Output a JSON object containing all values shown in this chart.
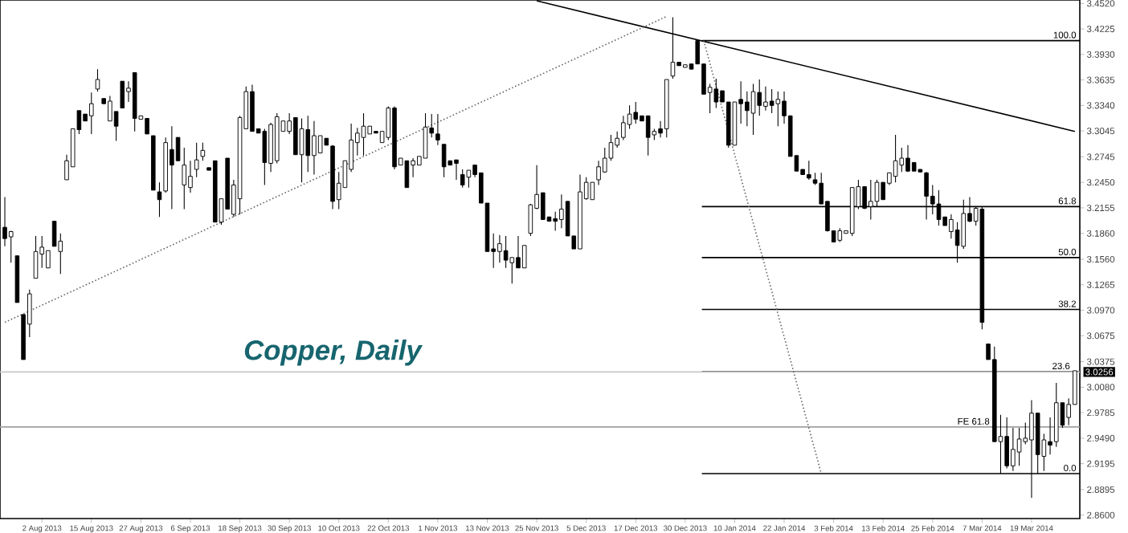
{
  "chart_data": {
    "type": "candlestick",
    "title": "Copper, Daily",
    "color": "#000000",
    "categories": [
      null,
      null,
      null,
      null,
      null,
      null,
      "2 Aug 2013",
      null,
      null,
      null,
      null,
      null,
      null,
      null,
      "15 Aug 2013",
      null,
      null,
      null,
      null,
      null,
      null,
      null,
      "27 Aug 2013",
      null,
      null,
      null,
      null,
      null,
      null,
      null,
      "6 Sep 2013",
      null,
      null,
      null,
      null,
      null,
      null,
      null,
      "18 Sep 2013",
      null,
      null,
      null,
      null,
      null,
      null,
      null,
      "30 Sep 2013",
      null,
      null,
      null,
      null,
      null,
      null,
      null,
      "10 Oct 2013",
      null,
      null,
      null,
      null,
      null,
      null,
      null,
      "22 Oct 2013",
      null,
      null,
      null,
      null,
      null,
      null,
      null,
      "1 Nov 2013",
      null,
      null,
      null,
      null,
      null,
      null,
      null,
      "13 Nov 2013",
      null,
      null,
      null,
      null,
      null,
      null,
      null,
      "25 Nov 2013",
      null,
      null,
      null,
      null,
      null,
      null,
      null,
      "5 Dec 2013",
      null,
      null,
      null,
      null,
      null,
      null,
      null,
      "17 Dec 2013",
      null,
      null,
      null,
      null,
      null,
      null,
      null,
      "30 Dec 2013",
      null,
      null,
      null,
      null,
      null,
      null,
      null,
      "10 Jan 2014",
      null,
      null,
      null,
      null,
      null,
      null,
      null,
      "22 Jan 2014",
      null,
      null,
      null,
      null,
      null,
      null,
      null,
      "3 Feb 2014",
      null,
      null,
      null,
      null,
      null,
      null,
      null,
      "13 Feb 2014",
      null,
      null,
      null,
      null,
      null,
      null,
      null,
      "25 Feb 2014",
      null,
      null,
      null,
      null,
      null,
      null,
      null,
      "7 Mar 2014",
      null,
      null,
      null,
      null,
      null,
      null,
      null,
      "19 Mar 2014",
      null,
      null,
      null,
      null,
      null,
      null,
      null
    ],
    "ohlc": [
      [
        3.193,
        3.228,
        3.171,
        3.18
      ],
      [
        3.182,
        3.189,
        3.152,
        3.188
      ],
      [
        3.16,
        3.16,
        3.106,
        3.106
      ],
      [
        3.092,
        3.092,
        3.04,
        3.04
      ],
      [
        3.081,
        3.121,
        3.066,
        3.116
      ],
      [
        3.134,
        3.183,
        3.134,
        3.165
      ],
      [
        3.162,
        3.183,
        3.146,
        3.17
      ],
      [
        3.146,
        3.166,
        3.146,
        3.166
      ],
      [
        3.2,
        3.2,
        3.171,
        3.171
      ],
      [
        3.165,
        3.186,
        3.139,
        3.177
      ],
      [
        3.248,
        3.277,
        3.248,
        3.27
      ],
      [
        3.263,
        3.307,
        3.263,
        3.307
      ],
      [
        3.328,
        3.328,
        3.301,
        3.306
      ],
      [
        3.324,
        3.324,
        3.316,
        3.316
      ],
      [
        3.322,
        3.349,
        3.301,
        3.336
      ],
      [
        3.353,
        3.376,
        3.35,
        3.364
      ],
      [
        3.342,
        3.342,
        3.336,
        3.336
      ],
      [
        3.316,
        3.345,
        3.316,
        3.339
      ],
      [
        3.327,
        3.327,
        3.293,
        3.31
      ],
      [
        3.362,
        3.362,
        3.331,
        3.331
      ],
      [
        3.35,
        3.362,
        3.338,
        3.354
      ],
      [
        3.372,
        3.372,
        3.304,
        3.319
      ],
      [
        3.318,
        3.322,
        3.318,
        3.322
      ],
      [
        3.319,
        3.319,
        3.301,
        3.301
      ],
      [
        3.299,
        3.299,
        3.236,
        3.236
      ],
      [
        3.234,
        3.245,
        3.205,
        3.225
      ],
      [
        3.235,
        3.297,
        3.233,
        3.291
      ],
      [
        3.283,
        3.31,
        3.214,
        3.265
      ],
      [
        3.297,
        3.297,
        3.27,
        3.27
      ],
      [
        3.242,
        3.285,
        3.214,
        3.265
      ],
      [
        3.239,
        3.27,
        3.233,
        3.252
      ],
      [
        3.26,
        3.291,
        3.251,
        3.271
      ],
      [
        3.275,
        3.291,
        3.27,
        3.282
      ],
      [
        3.262,
        3.262,
        3.259,
        3.259
      ],
      [
        3.27,
        3.27,
        3.199,
        3.199
      ],
      [
        3.199,
        3.226,
        3.196,
        3.226
      ],
      [
        3.273,
        3.273,
        3.214,
        3.214
      ],
      [
        3.208,
        3.248,
        3.205,
        3.242
      ],
      [
        3.226,
        3.322,
        3.208,
        3.32
      ],
      [
        3.307,
        3.356,
        3.307,
        3.35
      ],
      [
        3.35,
        3.358,
        3.304,
        3.304
      ],
      [
        3.307,
        3.307,
        3.302,
        3.302
      ],
      [
        3.304,
        3.307,
        3.242,
        3.268
      ],
      [
        3.267,
        3.314,
        3.257,
        3.312
      ],
      [
        3.27,
        3.325,
        3.267,
        3.321
      ],
      [
        3.304,
        3.316,
        3.304,
        3.316
      ],
      [
        3.304,
        3.325,
        3.301,
        3.316
      ],
      [
        3.32,
        3.32,
        3.277,
        3.277
      ],
      [
        3.277,
        3.319,
        3.245,
        3.307
      ],
      [
        3.306,
        3.322,
        3.257,
        3.276
      ],
      [
        3.276,
        3.316,
        3.254,
        3.299
      ],
      [
        3.279,
        3.299,
        3.279,
        3.299
      ],
      [
        3.296,
        3.296,
        3.288,
        3.288
      ],
      [
        3.287,
        3.288,
        3.214,
        3.223
      ],
      [
        3.225,
        3.257,
        3.214,
        3.244
      ],
      [
        3.239,
        3.27,
        3.239,
        3.27
      ],
      [
        3.26,
        3.313,
        3.257,
        3.294
      ],
      [
        3.291,
        3.308,
        3.276,
        3.302
      ],
      [
        3.297,
        3.325,
        3.276,
        3.31
      ],
      [
        3.301,
        3.31,
        3.301,
        3.31
      ],
      [
        3.304,
        3.304,
        3.302,
        3.302
      ],
      [
        3.291,
        3.304,
        3.291,
        3.304
      ],
      [
        3.297,
        3.333,
        3.294,
        3.331
      ],
      [
        3.331,
        3.333,
        3.26,
        3.263
      ],
      [
        3.265,
        3.273,
        3.265,
        3.273
      ],
      [
        3.27,
        3.27,
        3.239,
        3.239
      ],
      [
        3.265,
        3.273,
        3.251,
        3.27
      ],
      [
        3.265,
        3.275,
        3.265,
        3.275
      ],
      [
        3.273,
        3.325,
        3.273,
        3.309
      ],
      [
        3.308,
        3.324,
        3.297,
        3.302
      ],
      [
        3.301,
        3.324,
        3.288,
        3.294
      ],
      [
        3.289,
        3.289,
        3.251,
        3.263
      ],
      [
        3.27,
        3.27,
        3.265,
        3.265
      ],
      [
        3.271,
        3.271,
        3.248,
        3.267
      ],
      [
        3.254,
        3.26,
        3.239,
        3.242
      ],
      [
        3.251,
        3.259,
        3.239,
        3.259
      ],
      [
        3.265,
        3.265,
        3.251,
        3.254
      ],
      [
        3.256,
        3.256,
        3.221,
        3.221
      ],
      [
        3.221,
        3.221,
        3.165,
        3.165
      ],
      [
        3.168,
        3.186,
        3.146,
        3.165
      ],
      [
        3.165,
        3.184,
        3.152,
        3.174
      ],
      [
        3.166,
        3.183,
        3.146,
        3.155
      ],
      [
        3.152,
        3.158,
        3.128,
        3.158
      ],
      [
        3.158,
        3.183,
        3.146,
        3.146
      ],
      [
        3.146,
        3.172,
        3.146,
        3.172
      ],
      [
        3.186,
        3.22,
        3.183,
        3.219
      ],
      [
        3.215,
        3.265,
        3.214,
        3.231
      ],
      [
        3.233,
        3.233,
        3.202,
        3.202
      ],
      [
        3.205,
        3.205,
        3.2,
        3.2
      ],
      [
        3.203,
        3.211,
        3.189,
        3.2
      ],
      [
        3.202,
        3.231,
        3.192,
        3.214
      ],
      [
        3.223,
        3.223,
        3.183,
        3.183
      ],
      [
        3.183,
        3.183,
        3.168,
        3.168
      ],
      [
        3.168,
        3.254,
        3.168,
        3.234
      ],
      [
        3.226,
        3.251,
        3.225,
        3.245
      ],
      [
        3.225,
        3.245,
        3.225,
        3.245
      ],
      [
        3.248,
        3.27,
        3.242,
        3.263
      ],
      [
        3.257,
        3.285,
        3.256,
        3.273
      ],
      [
        3.273,
        3.3,
        3.27,
        3.291
      ],
      [
        3.288,
        3.304,
        3.285,
        3.296
      ],
      [
        3.297,
        3.322,
        3.294,
        3.314
      ],
      [
        3.312,
        3.334,
        3.307,
        3.324
      ],
      [
        3.326,
        3.338,
        3.313,
        3.318
      ],
      [
        3.322,
        3.322,
        3.316,
        3.316
      ],
      [
        3.322,
        3.322,
        3.276,
        3.297
      ],
      [
        3.3,
        3.307,
        3.294,
        3.304
      ],
      [
        3.307,
        3.316,
        3.297,
        3.302
      ],
      [
        3.307,
        3.364,
        3.297,
        3.364
      ],
      [
        3.368,
        3.436,
        3.365,
        3.384
      ],
      [
        3.384,
        3.384,
        3.38,
        3.38
      ],
      [
        3.378,
        3.381,
        3.378,
        3.381
      ],
      [
        3.382,
        3.382,
        3.376,
        3.376
      ],
      [
        3.409,
        3.409,
        3.382,
        3.382
      ],
      [
        3.382,
        3.382,
        3.347,
        3.347
      ],
      [
        3.349,
        3.359,
        3.325,
        3.355
      ],
      [
        3.353,
        3.365,
        3.331,
        3.338
      ],
      [
        3.351,
        3.351,
        3.338,
        3.338
      ],
      [
        3.338,
        3.338,
        3.285,
        3.288
      ],
      [
        3.288,
        3.338,
        3.288,
        3.338
      ],
      [
        3.341,
        3.362,
        3.313,
        3.336
      ],
      [
        3.338,
        3.35,
        3.31,
        3.328
      ],
      [
        3.325,
        3.359,
        3.3,
        3.35
      ],
      [
        3.349,
        3.364,
        3.322,
        3.334
      ],
      [
        3.333,
        3.356,
        3.328,
        3.338
      ],
      [
        3.339,
        3.353,
        3.325,
        3.334
      ],
      [
        3.336,
        3.35,
        3.31,
        3.341
      ],
      [
        3.339,
        3.35,
        3.313,
        3.322
      ],
      [
        3.322,
        3.322,
        3.275,
        3.275
      ],
      [
        3.276,
        3.276,
        3.258,
        3.258
      ],
      [
        3.26,
        3.26,
        3.254,
        3.254
      ],
      [
        3.254,
        3.27,
        3.248,
        3.25
      ],
      [
        3.248,
        3.256,
        3.242,
        3.244
      ],
      [
        3.244,
        3.256,
        3.22,
        3.22
      ],
      [
        3.223,
        3.223,
        3.188,
        3.189
      ],
      [
        3.189,
        3.189,
        3.176,
        3.176
      ],
      [
        3.178,
        3.192,
        3.176,
        3.189
      ],
      [
        3.186,
        3.189,
        3.186,
        3.189
      ],
      [
        3.186,
        3.239,
        3.183,
        3.239
      ],
      [
        3.217,
        3.248,
        3.214,
        3.24
      ],
      [
        3.24,
        3.24,
        3.214,
        3.215
      ],
      [
        3.217,
        3.248,
        3.202,
        3.223
      ],
      [
        3.223,
        3.248,
        3.217,
        3.245
      ],
      [
        3.245,
        3.245,
        3.225,
        3.225
      ],
      [
        3.244,
        3.256,
        3.242,
        3.256
      ],
      [
        3.252,
        3.3,
        3.245,
        3.27
      ],
      [
        3.265,
        3.285,
        3.257,
        3.273
      ],
      [
        3.273,
        3.288,
        3.257,
        3.258
      ],
      [
        3.268,
        3.268,
        3.258,
        3.258
      ],
      [
        3.26,
        3.26,
        3.257,
        3.257
      ],
      [
        3.256,
        3.257,
        3.202,
        3.229
      ],
      [
        3.229,
        3.242,
        3.208,
        3.22
      ],
      [
        3.22,
        3.236,
        3.195,
        3.202
      ],
      [
        3.205,
        3.205,
        3.195,
        3.195
      ],
      [
        3.188,
        3.208,
        3.18,
        3.202
      ],
      [
        3.19,
        3.199,
        3.152,
        3.172
      ],
      [
        3.171,
        3.225,
        3.168,
        3.209
      ],
      [
        3.209,
        3.228,
        3.199,
        3.2
      ],
      [
        3.2,
        3.217,
        3.195,
        3.215
      ],
      [
        3.214,
        3.217,
        3.075,
        3.083
      ],
      [
        3.058,
        3.058,
        3.04,
        3.04
      ],
      [
        3.04,
        3.055,
        2.945,
        2.945
      ],
      [
        2.945,
        2.976,
        2.908,
        2.951
      ],
      [
        2.951,
        2.973,
        2.914,
        2.917
      ],
      [
        2.917,
        2.961,
        2.911,
        2.936
      ],
      [
        2.933,
        2.961,
        2.917,
        2.948
      ],
      [
        2.945,
        2.967,
        2.942,
        2.949
      ],
      [
        2.947,
        2.993,
        2.88,
        2.978
      ],
      [
        2.978,
        2.978,
        2.908,
        2.93
      ],
      [
        2.928,
        2.954,
        2.911,
        2.947
      ],
      [
        2.945,
        2.973,
        2.93,
        2.941
      ],
      [
        2.945,
        3.013,
        2.939,
        2.99
      ],
      [
        2.99,
        2.99,
        2.961,
        2.964
      ],
      [
        2.973,
        2.995,
        2.964,
        2.988
      ],
      [
        2.988,
        3.027,
        2.988,
        3.027
      ]
    ],
    "series": [
      {
        "type": "line",
        "values": [
          null,
          null,
          null,
          null,
          null,
          null,
          null,
          null,
          null,
          null,
          null,
          null,
          null,
          null,
          null,
          null,
          null,
          null,
          null,
          null,
          null,
          null,
          null,
          null,
          null,
          null,
          null,
          null,
          null,
          null,
          null,
          null,
          null,
          null,
          null,
          null,
          null,
          null,
          null,
          null,
          null,
          null,
          null,
          null,
          null,
          null,
          null,
          null,
          null,
          null,
          null,
          null,
          null,
          null,
          null,
          null,
          null,
          null,
          null,
          null,
          null,
          null,
          null,
          null,
          null,
          null,
          null,
          null,
          null,
          null,
          null,
          null,
          null,
          null,
          null,
          null,
          null,
          null,
          null,
          null,
          null,
          null,
          null,
          null,
          null,
          null,
          3.455,
          null,
          null,
          null,
          null,
          null,
          null,
          null,
          null,
          null,
          null,
          null,
          null,
          null,
          null,
          null,
          null,
          null,
          null,
          null,
          null,
          null,
          null,
          null,
          null,
          null,
          null,
          null,
          null,
          null,
          null,
          null,
          null,
          null,
          null,
          null,
          null,
          null,
          null,
          null,
          null,
          null,
          null,
          null,
          null,
          null,
          null,
          null,
          null,
          null,
          null,
          null,
          null,
          null,
          null,
          null,
          null,
          null,
          null,
          null,
          null,
          null,
          null,
          null,
          null,
          null,
          null,
          null,
          null,
          null,
          null,
          null,
          null,
          null,
          null,
          null,
          null,
          null,
          null,
          null,
          null,
          null,
          null,
          null,
          null,
          null,
          null,
          3.304
        ],
        "color": "#000000",
        "line_style": "solid"
      },
      {
        "type": "line",
        "values": [
          3.083,
          null,
          null,
          null,
          null,
          null,
          null,
          null,
          null,
          null,
          null,
          null,
          null,
          null,
          null,
          null,
          null,
          null,
          null,
          null,
          null,
          null,
          null,
          null,
          null,
          null,
          null,
          null,
          null,
          null,
          null,
          null,
          null,
          null,
          null,
          null,
          null,
          null,
          null,
          null,
          null,
          null,
          null,
          null,
          null,
          null,
          null,
          null,
          null,
          null,
          null,
          null,
          null,
          null,
          null,
          null,
          null,
          null,
          null,
          null,
          null,
          null,
          null,
          null,
          null,
          null,
          null,
          null,
          null,
          null,
          null,
          null,
          null,
          null,
          null,
          null,
          null,
          null,
          null,
          null,
          null,
          null,
          null,
          null,
          null,
          null,
          null,
          null,
          null,
          null,
          null,
          null,
          null,
          null,
          null,
          null,
          null,
          null,
          null,
          null,
          null,
          null,
          null,
          null,
          null,
          null,
          null,
          3.437,
          null,
          null,
          null,
          null,
          null,
          null,
          null,
          null,
          null,
          null,
          null,
          null,
          null,
          null,
          null,
          null,
          null,
          null,
          null,
          null,
          null,
          null,
          null,
          null,
          null,
          null,
          null,
          null,
          null,
          null,
          null,
          null,
          null,
          null,
          null,
          null,
          null,
          null,
          null,
          null,
          null,
          null,
          null,
          null,
          null,
          null,
          null,
          null,
          null,
          null,
          null,
          null,
          null,
          null,
          null,
          null,
          null,
          null,
          null,
          null,
          null,
          null,
          null,
          null,
          null,
          null
        ],
        "color": "#666666",
        "line_style": "dotted"
      },
      {
        "type": "line",
        "values": [
          null,
          null,
          null,
          null,
          null,
          null,
          null,
          null,
          null,
          null,
          null,
          null,
          null,
          null,
          null,
          null,
          null,
          null,
          null,
          null,
          null,
          null,
          null,
          null,
          null,
          null,
          null,
          null,
          null,
          null,
          null,
          null,
          null,
          null,
          null,
          null,
          null,
          null,
          null,
          null,
          null,
          null,
          null,
          null,
          null,
          null,
          null,
          null,
          null,
          null,
          null,
          null,
          null,
          null,
          null,
          null,
          null,
          null,
          null,
          null,
          null,
          null,
          null,
          null,
          null,
          null,
          null,
          null,
          null,
          null,
          null,
          null,
          null,
          null,
          null,
          null,
          null,
          null,
          null,
          null,
          null,
          null,
          null,
          null,
          null,
          null,
          null,
          null,
          null,
          null,
          null,
          null,
          null,
          null,
          null,
          null,
          null,
          null,
          null,
          null,
          null,
          null,
          null,
          null,
          null,
          null,
          null,
          null,
          null,
          null,
          null,
          null,
          null,
          3.409,
          null,
          null,
          null,
          null,
          null,
          null,
          null,
          null,
          null,
          null,
          null,
          null,
          null,
          null,
          null,
          null,
          null,
          null,
          2.908,
          null,
          null,
          null,
          null,
          null,
          null,
          null,
          null,
          null,
          null,
          null,
          null,
          null,
          null,
          null,
          null,
          null,
          null,
          null,
          null,
          null,
          null,
          null,
          null,
          null,
          null,
          null,
          null,
          null,
          null,
          null,
          null,
          null,
          null,
          null,
          null,
          null,
          null,
          null,
          null,
          null
        ],
        "color": "#666666",
        "line_style": "dotted"
      }
    ],
    "ref_lines": [
      {
        "axis": "y",
        "value": 3.409,
        "color": "#000000"
      },
      {
        "axis": "y",
        "value": 3.217,
        "color": "#000000"
      },
      {
        "axis": "y",
        "value": 3.158,
        "color": "#000000"
      },
      {
        "axis": "y",
        "value": 3.098,
        "color": "#000000"
      },
      {
        "axis": "y",
        "value": 3.026,
        "color": "#000000"
      },
      {
        "axis": "y",
        "value": 2.962,
        "color": "#a0a0a0"
      },
      {
        "axis": "y",
        "value": 2.908,
        "color": "#000000"
      },
      {
        "axis": "y",
        "value": 3.0256,
        "label": "3.0256",
        "color": "#c8c8c8"
      }
    ],
    "annotations": [
      {
        "text": "100.0",
        "y": 3.409
      },
      {
        "text": "61.8",
        "y": 3.217
      },
      {
        "text": "50.0",
        "y": 3.158
      },
      {
        "text": "38.2",
        "y": 3.098
      },
      {
        "text": "23.6",
        "y": 3.026
      },
      {
        "text": "FE 61.8",
        "y": 2.962
      },
      {
        "text": "0.0",
        "y": 2.908
      }
    ],
    "ylim": [
      2.856,
      3.456
    ],
    "yticks": [
      {
        "value": 2.86,
        "label": "2.8600"
      },
      {
        "value": 2.8895,
        "label": "2.8895"
      },
      {
        "value": 2.9195,
        "label": "2.9195"
      },
      {
        "value": 2.949,
        "label": "2.9490"
      },
      {
        "value": 2.9785,
        "label": "2.9785"
      },
      {
        "value": 3.008,
        "label": "3.0080"
      },
      {
        "value": 3.0375,
        "label": "3.0375"
      },
      {
        "value": 3.0675,
        "label": "3.0675"
      },
      {
        "value": 3.097,
        "label": "3.0970"
      },
      {
        "value": 3.1265,
        "label": "3.1265"
      },
      {
        "value": 3.156,
        "label": "3.1560"
      },
      {
        "value": 3.186,
        "label": "3.1860"
      },
      {
        "value": 3.2155,
        "label": "3.2155"
      },
      {
        "value": 3.245,
        "label": "3.2450"
      },
      {
        "value": 3.2745,
        "label": "3.2745"
      },
      {
        "value": 3.3045,
        "label": "3.3045"
      },
      {
        "value": 3.334,
        "label": "3.3340"
      },
      {
        "value": 3.3635,
        "label": "3.3635"
      },
      {
        "value": 3.393,
        "label": "3.3930"
      },
      {
        "value": 3.4225,
        "label": "3.4225"
      },
      {
        "value": 3.452,
        "label": "3.4520"
      }
    ]
  }
}
